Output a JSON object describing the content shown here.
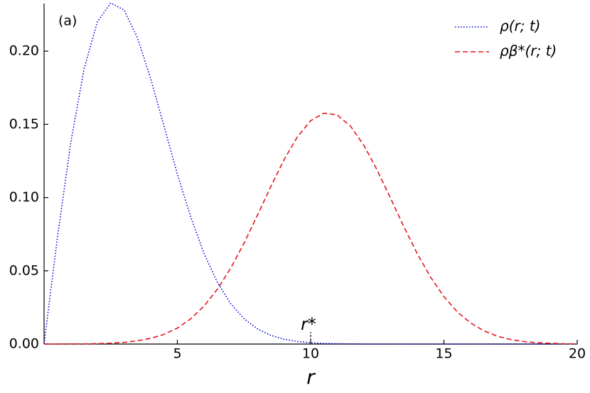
{
  "chart_data": {
    "type": "line",
    "xlabel": "r",
    "annotations": [
      {
        "text": "(a)"
      },
      {
        "text": "r*",
        "x": 10
      }
    ],
    "x": [
      0,
      0.5,
      1,
      1.5,
      2,
      2.5,
      3,
      3.5,
      4,
      4.5,
      5,
      5.5,
      6,
      6.5,
      7,
      7.5,
      8,
      8.5,
      9,
      9.5,
      10,
      10.5,
      11,
      11.5,
      12,
      12.5,
      13,
      13.5,
      14,
      14.5,
      15,
      15.5,
      16,
      16.5,
      17,
      17.5,
      18,
      18.5,
      19,
      19.5,
      20
    ],
    "series": [
      {
        "name": "ρ(r; t)",
        "color": "#0000dd",
        "style": "dotted",
        "values": [
          0,
          0.0726,
          0.1374,
          0.1879,
          0.2201,
          0.2329,
          0.2281,
          0.2092,
          0.1812,
          0.1488,
          0.116,
          0.0868,
          0.0619,
          0.0422,
          0.0276,
          0.0173,
          0.0104,
          0.006,
          0.0033,
          0.0018,
          0.0009,
          0.0004,
          0.0002,
          0.0001,
          0,
          0,
          0,
          0,
          0,
          0,
          0,
          0,
          0,
          0,
          0,
          0,
          0,
          0,
          0,
          0,
          0
        ]
      },
      {
        "name": "ρβ*(r; t)",
        "color": "#e8141e",
        "style": "dashed",
        "values": [
          0,
          0,
          0.0001,
          0.0001,
          0.0003,
          0.0006,
          0.0012,
          0.0022,
          0.0039,
          0.0066,
          0.0109,
          0.0172,
          0.0259,
          0.0374,
          0.0518,
          0.0688,
          0.0878,
          0.1073,
          0.1258,
          0.1414,
          0.1525,
          0.1577,
          0.1564,
          0.1487,
          0.1356,
          0.1186,
          0.0995,
          0.08,
          0.0617,
          0.0457,
          0.0324,
          0.022,
          0.0144,
          0.009,
          0.0054,
          0.0031,
          0.0017,
          0.0009,
          0.0005,
          0.0002,
          0.0001
        ]
      }
    ],
    "xlim": [
      0,
      20
    ],
    "xticks": [
      5,
      10,
      15,
      20
    ],
    "ylim": [
      0,
      0.2325
    ],
    "yticks": [
      {
        "value": 0,
        "label": "0.00"
      },
      {
        "value": 0.05,
        "label": "0.05"
      },
      {
        "value": 0.1,
        "label": "0.10"
      },
      {
        "value": 0.15,
        "label": "0.15"
      },
      {
        "value": 0.2,
        "label": "0.20"
      }
    ],
    "legend": "upper right"
  }
}
